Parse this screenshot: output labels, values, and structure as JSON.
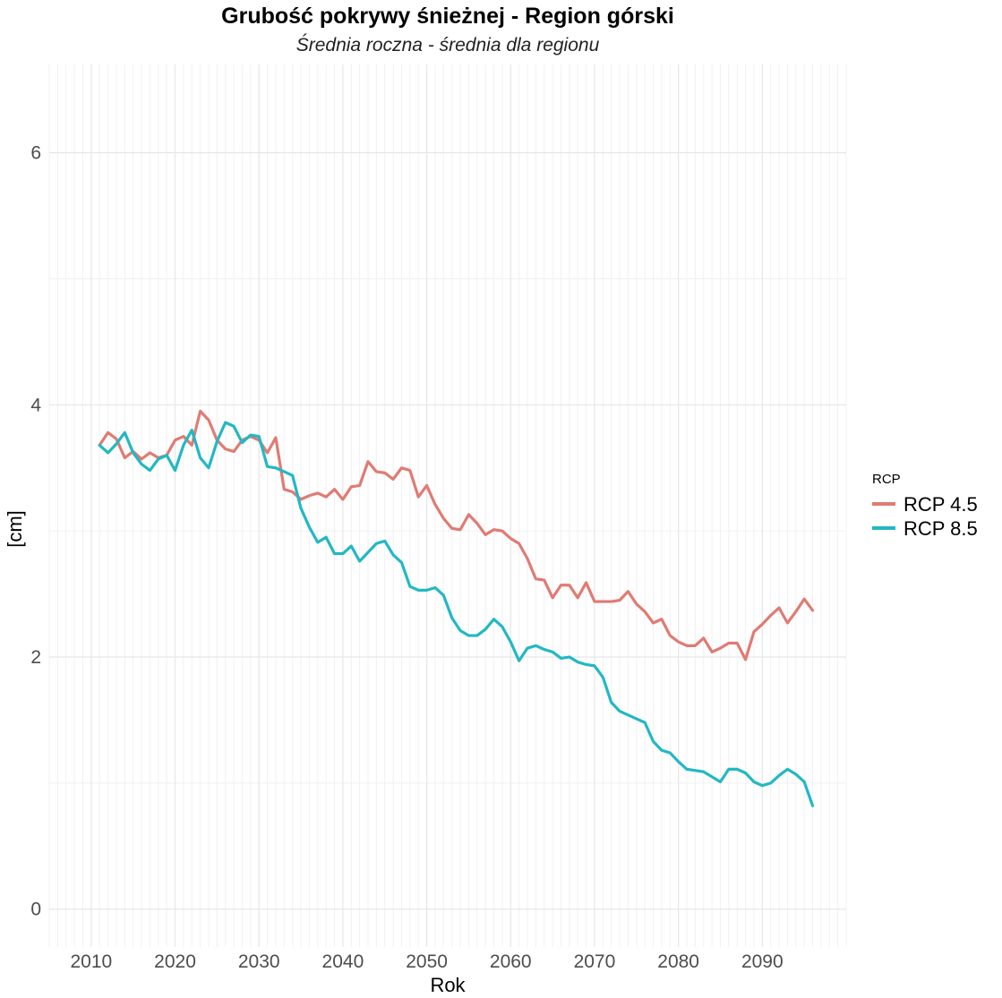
{
  "chart_data": {
    "type": "line",
    "title": "Grubość pokrywy śnieżnej - Region górski",
    "subtitle": "Średnia roczna - średnia dla regionu",
    "xlabel": "Rok",
    "ylabel": "[cm]",
    "xlim": [
      2005,
      2100
    ],
    "ylim": [
      -0.3,
      6.7
    ],
    "x_ticks": [
      2010,
      2020,
      2030,
      2040,
      2050,
      2060,
      2070,
      2080,
      2090
    ],
    "y_ticks": [
      0,
      2,
      4,
      6
    ],
    "grid": true,
    "legend": {
      "title": "RCP",
      "position": "right"
    },
    "x": [
      2011,
      2012,
      2013,
      2014,
      2015,
      2016,
      2017,
      2018,
      2019,
      2020,
      2021,
      2022,
      2023,
      2024,
      2025,
      2026,
      2027,
      2028,
      2029,
      2030,
      2031,
      2032,
      2033,
      2034,
      2035,
      2036,
      2037,
      2038,
      2039,
      2040,
      2041,
      2042,
      2043,
      2044,
      2045,
      2046,
      2047,
      2048,
      2049,
      2050,
      2051,
      2052,
      2053,
      2054,
      2055,
      2056,
      2057,
      2058,
      2059,
      2060,
      2061,
      2062,
      2063,
      2064,
      2065,
      2066,
      2067,
      2068,
      2069,
      2070,
      2071,
      2072,
      2073,
      2074,
      2075,
      2076,
      2077,
      2078,
      2079,
      2080,
      2081,
      2082,
      2083,
      2084,
      2085,
      2086,
      2087,
      2088,
      2089,
      2090,
      2091,
      2092,
      2093,
      2094,
      2095,
      2096
    ],
    "series": [
      {
        "name": "RCP 4.5",
        "color": "#E07B73",
        "values": [
          3.68,
          3.78,
          3.73,
          3.58,
          3.63,
          3.57,
          3.62,
          3.58,
          3.6,
          3.72,
          3.75,
          3.68,
          3.95,
          3.88,
          3.72,
          3.65,
          3.63,
          3.72,
          3.75,
          3.72,
          3.62,
          3.74,
          3.33,
          3.31,
          3.25,
          3.28,
          3.3,
          3.27,
          3.33,
          3.25,
          3.35,
          3.36,
          3.55,
          3.47,
          3.46,
          3.41,
          3.5,
          3.48,
          3.27,
          3.36,
          3.21,
          3.1,
          3.02,
          3.01,
          3.13,
          3.06,
          2.97,
          3.01,
          3.0,
          2.94,
          2.9,
          2.78,
          2.62,
          2.61,
          2.47,
          2.57,
          2.57,
          2.47,
          2.59,
          2.44,
          2.44,
          2.44,
          2.45,
          2.52,
          2.42,
          2.36,
          2.27,
          2.3,
          2.17,
          2.12,
          2.09,
          2.09,
          2.15,
          2.04,
          2.07,
          2.11,
          2.11,
          1.98,
          2.2,
          2.26,
          2.33,
          2.39,
          2.27,
          2.36,
          2.46,
          2.37
        ]
      },
      {
        "name": "RCP 8.5",
        "color": "#22B8C4",
        "values": [
          3.68,
          3.62,
          3.69,
          3.78,
          3.62,
          3.53,
          3.48,
          3.57,
          3.6,
          3.48,
          3.68,
          3.8,
          3.58,
          3.5,
          3.71,
          3.86,
          3.83,
          3.7,
          3.76,
          3.75,
          3.51,
          3.5,
          3.47,
          3.44,
          3.18,
          3.03,
          2.91,
          2.95,
          2.82,
          2.82,
          2.88,
          2.76,
          2.83,
          2.9,
          2.92,
          2.81,
          2.75,
          2.56,
          2.53,
          2.53,
          2.55,
          2.49,
          2.31,
          2.21,
          2.17,
          2.17,
          2.22,
          2.3,
          2.24,
          2.12,
          1.97,
          2.07,
          2.09,
          2.06,
          2.04,
          1.99,
          2.0,
          1.96,
          1.94,
          1.93,
          1.84,
          1.64,
          1.57,
          1.54,
          1.51,
          1.48,
          1.33,
          1.26,
          1.24,
          1.17,
          1.11,
          1.1,
          1.09,
          1.05,
          1.01,
          1.11,
          1.11,
          1.08,
          1.01,
          0.98,
          1.0,
          1.06,
          1.11,
          1.07,
          1.01,
          0.82
        ]
      }
    ]
  }
}
